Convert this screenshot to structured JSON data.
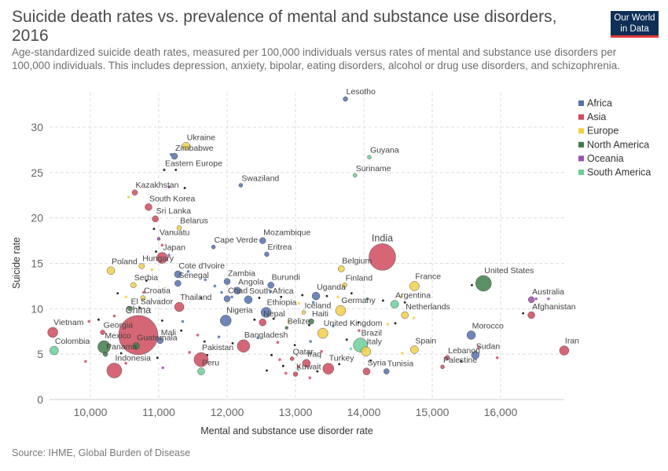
{
  "title": "Suicide death rates vs. prevalence of mental and substance use disorders, 2016",
  "subtitle": "Age-standardized suicide death rates, measured per 100,000 individuals versus rates of mental and substance use disorders per 100,000 individuals. This includes depression, anxiety, bipolar, eating disorders, alcohol or drug use disorders, and schizophrenia.",
  "logo": {
    "line1": "Our World",
    "line2": "in Data"
  },
  "source": "Source: IHME, Global Burden of Disease",
  "chart_data": {
    "type": "scatter",
    "title": "Suicide death rates vs. prevalence of mental and substance use disorders, 2016",
    "xlabel": "Mental and substance use disorder rate",
    "ylabel": "Suicide rate",
    "xlim": [
      9400,
      16950
    ],
    "ylim": [
      0,
      34
    ],
    "xticks": [
      10000,
      11000,
      12000,
      13000,
      14000,
      15000,
      16000
    ],
    "xtick_labels": [
      "10,000",
      "11,000",
      "12,000",
      "13,000",
      "14,000",
      "15,000",
      "16,000"
    ],
    "yticks": [
      0,
      5,
      10,
      15,
      20,
      25,
      30
    ],
    "grid": true,
    "legend_position": "top-right",
    "legend": [
      {
        "name": "Africa",
        "color": "#5471ae"
      },
      {
        "name": "Asia",
        "color": "#cf4b5d"
      },
      {
        "name": "Europe",
        "color": "#f2cf4a"
      },
      {
        "name": "North America",
        "color": "#3f7d48"
      },
      {
        "name": "Oceania",
        "color": "#9b51b0"
      },
      {
        "name": "South America",
        "color": "#6ccf98"
      }
    ],
    "labeled_points": [
      {
        "label": "Lesotho",
        "region": "Africa",
        "x": 13730,
        "y": 33.1,
        "size": 3
      },
      {
        "label": "Ukraine",
        "region": "Europe",
        "x": 11400,
        "y": 27.9,
        "size": 5
      },
      {
        "label": "Zimbabwe",
        "region": "Africa",
        "x": 11230,
        "y": 26.8,
        "size": 4
      },
      {
        "label": "Eastern Europe",
        "region": "Other",
        "x": 11080,
        "y": 25.3,
        "size": 2
      },
      {
        "label": "Guyana",
        "region": "South America",
        "x": 14080,
        "y": 26.7,
        "size": 2.5
      },
      {
        "label": "Suriname",
        "region": "South America",
        "x": 13870,
        "y": 24.7,
        "size": 2.5
      },
      {
        "label": "Swaziland",
        "region": "Africa",
        "x": 12200,
        "y": 23.6,
        "size": 2.5
      },
      {
        "label": "Kazakhstan",
        "region": "Asia",
        "x": 10650,
        "y": 22.8,
        "size": 3.5
      },
      {
        "label": "South Korea",
        "region": "Asia",
        "x": 10850,
        "y": 21.2,
        "size": 4.5
      },
      {
        "label": "Sri Lanka",
        "region": "Asia",
        "x": 10950,
        "y": 19.9,
        "size": 4
      },
      {
        "label": "Belarus",
        "region": "Europe",
        "x": 11300,
        "y": 18.9,
        "size": 3
      },
      {
        "label": "Vanuatu",
        "region": "Oceania",
        "x": 11000,
        "y": 17.7,
        "size": 2
      },
      {
        "label": "Mozambique",
        "region": "Africa",
        "x": 12520,
        "y": 17.5,
        "size": 4
      },
      {
        "label": "Cape Verde",
        "region": "Africa",
        "x": 11800,
        "y": 16.8,
        "size": 2.5
      },
      {
        "label": "Eritrea",
        "region": "Africa",
        "x": 12580,
        "y": 16.0,
        "size": 3
      },
      {
        "label": "Japan",
        "region": "Asia",
        "x": 11050,
        "y": 15.6,
        "size": 7
      },
      {
        "label": "India",
        "region": "Asia",
        "x": 14270,
        "y": 15.7,
        "size": 17
      },
      {
        "label": "Poland",
        "region": "Europe",
        "x": 10300,
        "y": 14.2,
        "size": 5
      },
      {
        "label": "Hungary",
        "region": "Europe",
        "x": 10750,
        "y": 14.7,
        "size": 3.5
      },
      {
        "label": "Cote d'Ivoire",
        "region": "Africa",
        "x": 11280,
        "y": 13.8,
        "size": 4.5
      },
      {
        "label": "Belgium",
        "region": "Europe",
        "x": 13670,
        "y": 14.4,
        "size": 4
      },
      {
        "label": "Serbia",
        "region": "Europe",
        "x": 10630,
        "y": 12.6,
        "size": 3.5
      },
      {
        "label": "Senegal",
        "region": "Africa",
        "x": 11280,
        "y": 12.8,
        "size": 4
      },
      {
        "label": "Zambia",
        "region": "Africa",
        "x": 12000,
        "y": 13.0,
        "size": 4
      },
      {
        "label": "Burundi",
        "region": "Africa",
        "x": 12640,
        "y": 12.6,
        "size": 4
      },
      {
        "label": "Finland",
        "region": "Europe",
        "x": 13720,
        "y": 12.6,
        "size": 3
      },
      {
        "label": "France",
        "region": "Europe",
        "x": 14740,
        "y": 12.5,
        "size": 6
      },
      {
        "label": "United States",
        "region": "North America",
        "x": 15750,
        "y": 12.8,
        "size": 10
      },
      {
        "label": "Angola",
        "region": "Africa",
        "x": 12150,
        "y": 12.0,
        "size": 4.5
      },
      {
        "label": "Uganda",
        "region": "Africa",
        "x": 13300,
        "y": 11.4,
        "size": 5
      },
      {
        "label": "Croatia",
        "region": "Europe",
        "x": 10770,
        "y": 11.2,
        "size": 3
      },
      {
        "label": "Chad",
        "region": "Africa",
        "x": 12000,
        "y": 11.1,
        "size": 4
      },
      {
        "label": "South Africa",
        "region": "Africa",
        "x": 12310,
        "y": 11.0,
        "size": 5
      },
      {
        "label": "Thailand",
        "region": "Asia",
        "x": 11300,
        "y": 10.2,
        "size": 6
      },
      {
        "label": "Argentina",
        "region": "South America",
        "x": 14450,
        "y": 10.5,
        "size": 5
      },
      {
        "label": "Australia",
        "region": "Oceania",
        "x": 16450,
        "y": 11.0,
        "size": 4
      },
      {
        "label": "El Salvador",
        "region": "North America",
        "x": 10580,
        "y": 10.0,
        "size": 3
      },
      {
        "label": "Germany",
        "region": "Europe",
        "x": 13660,
        "y": 9.8,
        "size": 6.5
      },
      {
        "label": "Iceland",
        "region": "Europe",
        "x": 13120,
        "y": 9.6,
        "size": 2.5
      },
      {
        "label": "Ethiopia",
        "region": "Africa",
        "x": 12570,
        "y": 9.6,
        "size": 6.5
      },
      {
        "label": "Netherlands",
        "region": "Europe",
        "x": 14600,
        "y": 9.3,
        "size": 4.5
      },
      {
        "label": "Afghanistan",
        "region": "Asia",
        "x": 16450,
        "y": 9.3,
        "size": 4.5
      },
      {
        "label": "China",
        "region": "Asia",
        "x": 10700,
        "y": 7.1,
        "size": 25
      },
      {
        "label": "Nepal",
        "region": "Asia",
        "x": 12520,
        "y": 8.5,
        "size": 4.5
      },
      {
        "label": "Nigeria",
        "region": "Africa",
        "x": 11980,
        "y": 8.7,
        "size": 7
      },
      {
        "label": "Haiti",
        "region": "North America",
        "x": 13230,
        "y": 8.6,
        "size": 3.5
      },
      {
        "label": "Belize",
        "region": "North America",
        "x": 12870,
        "y": 7.9,
        "size": 2
      },
      {
        "label": "United Kingdom",
        "region": "Europe",
        "x": 13400,
        "y": 7.3,
        "size": 6.5
      },
      {
        "label": "Vietnam",
        "region": "Asia",
        "x": 9450,
        "y": 7.4,
        "size": 6.5
      },
      {
        "label": "Georgia",
        "region": "Asia",
        "x": 10180,
        "y": 7.4,
        "size": 3
      },
      {
        "label": "Mali",
        "region": "Africa",
        "x": 11020,
        "y": 6.5,
        "size": 4
      },
      {
        "label": "Morocco",
        "region": "Africa",
        "x": 15570,
        "y": 7.1,
        "size": 5.5
      },
      {
        "label": "Mexico",
        "region": "North America",
        "x": 10200,
        "y": 5.8,
        "size": 8
      },
      {
        "label": "Guatemala",
        "region": "North America",
        "x": 10670,
        "y": 5.9,
        "size": 4.5
      },
      {
        "label": "Bangladesh",
        "region": "Asia",
        "x": 12240,
        "y": 5.9,
        "size": 8
      },
      {
        "label": "Brazil",
        "region": "South America",
        "x": 13950,
        "y": 6.0,
        "size": 9
      },
      {
        "label": "Italy",
        "region": "Europe",
        "x": 14030,
        "y": 5.3,
        "size": 6
      },
      {
        "label": "Spain",
        "region": "Europe",
        "x": 14740,
        "y": 5.5,
        "size": 5
      },
      {
        "label": "Colombia",
        "region": "South America",
        "x": 9470,
        "y": 5.4,
        "size": 5.5
      },
      {
        "label": "Panama",
        "region": "North America",
        "x": 10220,
        "y": 5.0,
        "size": 3
      },
      {
        "label": "Pakistan",
        "region": "Asia",
        "x": 11620,
        "y": 4.4,
        "size": 9
      },
      {
        "label": "Sudan",
        "region": "Africa",
        "x": 15630,
        "y": 4.9,
        "size": 5
      },
      {
        "label": "Lebanon",
        "region": "Asia",
        "x": 15220,
        "y": 4.6,
        "size": 3
      },
      {
        "label": "Qatar",
        "region": "Asia",
        "x": 12950,
        "y": 4.5,
        "size": 2.5
      },
      {
        "label": "Iran",
        "region": "Asia",
        "x": 16930,
        "y": 5.4,
        "size": 6
      },
      {
        "label": "Indonesia",
        "region": "Asia",
        "x": 10350,
        "y": 3.2,
        "size": 9.5
      },
      {
        "label": "Peru",
        "region": "South America",
        "x": 11620,
        "y": 3.1,
        "size": 4.5
      },
      {
        "label": "Iraq",
        "region": "Asia",
        "x": 13160,
        "y": 4.0,
        "size": 5
      },
      {
        "label": "Turkey",
        "region": "Asia",
        "x": 13480,
        "y": 3.4,
        "size": 7
      },
      {
        "label": "Palestine",
        "region": "Asia",
        "x": 15150,
        "y": 3.6,
        "size": 2.5
      },
      {
        "label": "Syria",
        "region": "Asia",
        "x": 14040,
        "y": 3.1,
        "size": 4.5
      },
      {
        "label": "Tunisia",
        "region": "Africa",
        "x": 14330,
        "y": 3.1,
        "size": 3.5
      },
      {
        "label": "Kuwait",
        "region": "Asia",
        "x": 13000,
        "y": 2.8,
        "size": 3
      }
    ],
    "unlabeled_points": [
      {
        "region": "Other",
        "x": 11250,
        "y": 25.3
      },
      {
        "region": "Africa",
        "x": 11180,
        "y": 27.0
      },
      {
        "region": "Oceania",
        "x": 11150,
        "y": 23.4
      },
      {
        "region": "Other",
        "x": 11380,
        "y": 23.3
      },
      {
        "region": "Europe",
        "x": 10560,
        "y": 22.3
      },
      {
        "region": "Other",
        "x": 10930,
        "y": 18.8
      },
      {
        "region": "Asia",
        "x": 11050,
        "y": 17.0
      },
      {
        "region": "Other",
        "x": 10960,
        "y": 16.3
      },
      {
        "region": "Africa",
        "x": 11150,
        "y": 15.9
      },
      {
        "region": "Europe",
        "x": 10900,
        "y": 14.3
      },
      {
        "region": "Other",
        "x": 10820,
        "y": 13.1
      },
      {
        "region": "Africa",
        "x": 11430,
        "y": 14.1
      },
      {
        "region": "Africa",
        "x": 11680,
        "y": 13.2
      },
      {
        "region": "Africa",
        "x": 11820,
        "y": 12.5
      },
      {
        "region": "Other",
        "x": 11620,
        "y": 11.2
      },
      {
        "region": "Asia",
        "x": 10780,
        "y": 11.8
      },
      {
        "region": "Other",
        "x": 10400,
        "y": 11.7
      },
      {
        "region": "Europe",
        "x": 10520,
        "y": 11.3
      },
      {
        "region": "Other",
        "x": 10720,
        "y": 10.1
      },
      {
        "region": "Africa",
        "x": 11920,
        "y": 11.8
      },
      {
        "region": "Africa",
        "x": 12070,
        "y": 11.3
      },
      {
        "region": "Other",
        "x": 12470,
        "y": 11.2
      },
      {
        "region": "Africa",
        "x": 12640,
        "y": 11.9
      },
      {
        "region": "Other",
        "x": 12790,
        "y": 11.3
      },
      {
        "region": "Other",
        "x": 13100,
        "y": 11.5
      },
      {
        "region": "Europe",
        "x": 13050,
        "y": 10.6
      },
      {
        "region": "Africa",
        "x": 13260,
        "y": 10.7
      },
      {
        "region": "Other",
        "x": 13460,
        "y": 11.4
      },
      {
        "region": "Europe",
        "x": 13620,
        "y": 11.3
      },
      {
        "region": "Other",
        "x": 13820,
        "y": 11.7
      },
      {
        "region": "North America",
        "x": 14050,
        "y": 11.1
      },
      {
        "region": "Other",
        "x": 14280,
        "y": 10.9
      },
      {
        "region": "Europe",
        "x": 14540,
        "y": 11.3
      },
      {
        "region": "Other",
        "x": 14600,
        "y": 10.7
      },
      {
        "region": "Oceania",
        "x": 16520,
        "y": 11.1
      },
      {
        "region": "Oceania",
        "x": 16700,
        "y": 11.1
      },
      {
        "region": "Other",
        "x": 15580,
        "y": 12.6
      },
      {
        "region": "Other",
        "x": 16330,
        "y": 9.5
      },
      {
        "region": "Europe",
        "x": 14730,
        "y": 9.0
      },
      {
        "region": "Other",
        "x": 14460,
        "y": 8.4
      },
      {
        "region": "Europe",
        "x": 14350,
        "y": 8.3
      },
      {
        "region": "Other",
        "x": 13920,
        "y": 8.5
      },
      {
        "region": "Africa",
        "x": 13550,
        "y": 8.1
      },
      {
        "region": "Other",
        "x": 13200,
        "y": 8.2
      },
      {
        "region": "Other",
        "x": 12680,
        "y": 8.9
      },
      {
        "region": "Europe",
        "x": 12900,
        "y": 8.6
      },
      {
        "region": "Other",
        "x": 12400,
        "y": 8.8
      },
      {
        "region": "Africa",
        "x": 11350,
        "y": 8.6
      },
      {
        "region": "Other",
        "x": 11050,
        "y": 8.7
      },
      {
        "region": "Europe",
        "x": 10600,
        "y": 8.5
      },
      {
        "region": "Asia",
        "x": 10350,
        "y": 9.2
      },
      {
        "region": "Other",
        "x": 10120,
        "y": 8.8
      },
      {
        "region": "Asia",
        "x": 9980,
        "y": 8.6
      },
      {
        "region": "Other",
        "x": 11330,
        "y": 7.6
      },
      {
        "region": "Asia",
        "x": 11570,
        "y": 7.1
      },
      {
        "region": "Other",
        "x": 11670,
        "y": 6.4
      },
      {
        "region": "Africa",
        "x": 11880,
        "y": 6.9
      },
      {
        "region": "Other",
        "x": 12080,
        "y": 6.2
      },
      {
        "region": "Asia",
        "x": 12740,
        "y": 6.3
      },
      {
        "region": "Other",
        "x": 12990,
        "y": 6.0
      },
      {
        "region": "Africa",
        "x": 13220,
        "y": 6.4
      },
      {
        "region": "South America",
        "x": 13810,
        "y": 5.6
      },
      {
        "region": "Other",
        "x": 13750,
        "y": 6.6
      },
      {
        "region": "Asia",
        "x": 13380,
        "y": 5.3
      },
      {
        "region": "Other",
        "x": 12650,
        "y": 4.9
      },
      {
        "region": "Asia",
        "x": 12770,
        "y": 4.4
      },
      {
        "region": "Other",
        "x": 12820,
        "y": 3.7
      },
      {
        "region": "Asia",
        "x": 13050,
        "y": 3.6
      },
      {
        "region": "Other",
        "x": 13320,
        "y": 3.1
      },
      {
        "region": "Asia",
        "x": 13210,
        "y": 2.4
      },
      {
        "region": "Other",
        "x": 12580,
        "y": 3.2
      },
      {
        "region": "Asia",
        "x": 12860,
        "y": 2.9
      },
      {
        "region": "Other",
        "x": 15420,
        "y": 4.2
      },
      {
        "region": "Asia",
        "x": 15680,
        "y": 5.8
      },
      {
        "region": "Other",
        "x": 10980,
        "y": 4.6
      },
      {
        "region": "Oceania",
        "x": 11060,
        "y": 3.5
      },
      {
        "region": "Asia",
        "x": 9930,
        "y": 4.2
      },
      {
        "region": "Other",
        "x": 10450,
        "y": 5.1
      },
      {
        "region": "Asia",
        "x": 10520,
        "y": 4.0
      },
      {
        "region": "Asia",
        "x": 11450,
        "y": 5.2
      },
      {
        "region": "Other",
        "x": 11710,
        "y": 4.9
      },
      {
        "region": "Africa",
        "x": 12450,
        "y": 6.8
      },
      {
        "region": "Asia",
        "x": 13930,
        "y": 7.6
      },
      {
        "region": "Europe",
        "x": 14560,
        "y": 5.1
      },
      {
        "region": "Other",
        "x": 14100,
        "y": 4.3
      },
      {
        "region": "Asia",
        "x": 15950,
        "y": 4.6
      },
      {
        "region": "Other",
        "x": 13640,
        "y": 3.9
      },
      {
        "region": "South America",
        "x": 13040,
        "y": 3.3
      }
    ]
  }
}
